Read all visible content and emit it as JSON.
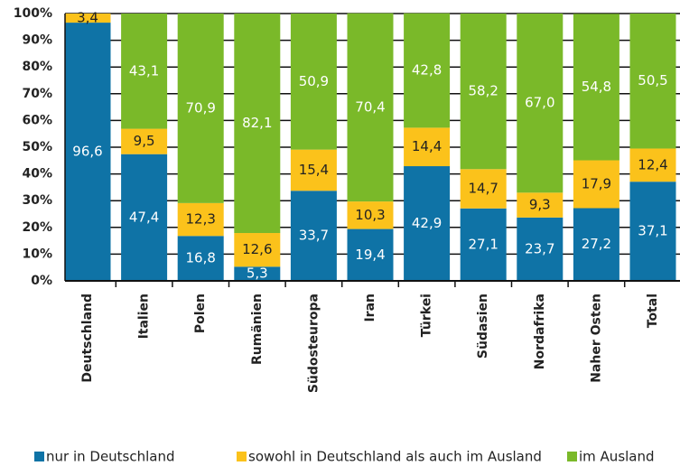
{
  "chart_data": {
    "type": "stacked-bar",
    "categories": [
      "Deutschland",
      "Italien",
      "Polen",
      "Rumänien",
      "Südosteuropa",
      "Iran",
      "Türkei",
      "Südasien",
      "Nordafrika",
      "Naher Osten",
      "Total"
    ],
    "series": [
      {
        "name": "nur in Deutschland",
        "color": "#0f73a6",
        "text_color": "#ffffff",
        "values": [
          96.6,
          47.4,
          16.8,
          5.3,
          33.7,
          19.4,
          42.9,
          27.1,
          23.7,
          27.2,
          37.1
        ],
        "value_labels": [
          "96,6",
          "47,4",
          "16,8",
          "5,3",
          "33,7",
          "19,4",
          "42,9",
          "27,1",
          "23,7",
          "27,2",
          "37,1"
        ]
      },
      {
        "name": "sowohl in Deutschland als auch im Ausland",
        "color": "#fbc21b",
        "text_color": "#222222",
        "values": [
          3.4,
          9.5,
          12.3,
          12.6,
          15.4,
          10.3,
          14.4,
          14.7,
          9.3,
          17.9,
          12.4
        ],
        "value_labels": [
          "3,4",
          "9,5",
          "12,3",
          "12,6",
          "15,4",
          "10,3",
          "14,4",
          "14,7",
          "9,3",
          "17,9",
          "12,4"
        ]
      },
      {
        "name": "im Ausland",
        "color": "#7ab929",
        "text_color": "#ffffff",
        "values": [
          null,
          43.1,
          70.9,
          82.1,
          50.9,
          70.4,
          42.8,
          58.2,
          67.0,
          54.8,
          50.5
        ],
        "value_labels": [
          null,
          "43,1",
          "70,9",
          "82,1",
          "50,9",
          "70,4",
          "42,8",
          "58,2",
          "67,0",
          "54,8",
          "50,5"
        ]
      }
    ],
    "ylim": [
      0,
      100
    ],
    "yticks": [
      {
        "value": 0,
        "label": "0%"
      },
      {
        "value": 10,
        "label": "10%"
      },
      {
        "value": 20,
        "label": "20%"
      },
      {
        "value": 30,
        "label": "30%"
      },
      {
        "value": 40,
        "label": "40%"
      },
      {
        "value": 50,
        "label": "50%"
      },
      {
        "value": 60,
        "label": "60%"
      },
      {
        "value": 70,
        "label": "70%"
      },
      {
        "value": 80,
        "label": "80%"
      },
      {
        "value": 90,
        "label": "90%"
      },
      {
        "value": 100,
        "label": "100%"
      }
    ],
    "grid": true
  }
}
